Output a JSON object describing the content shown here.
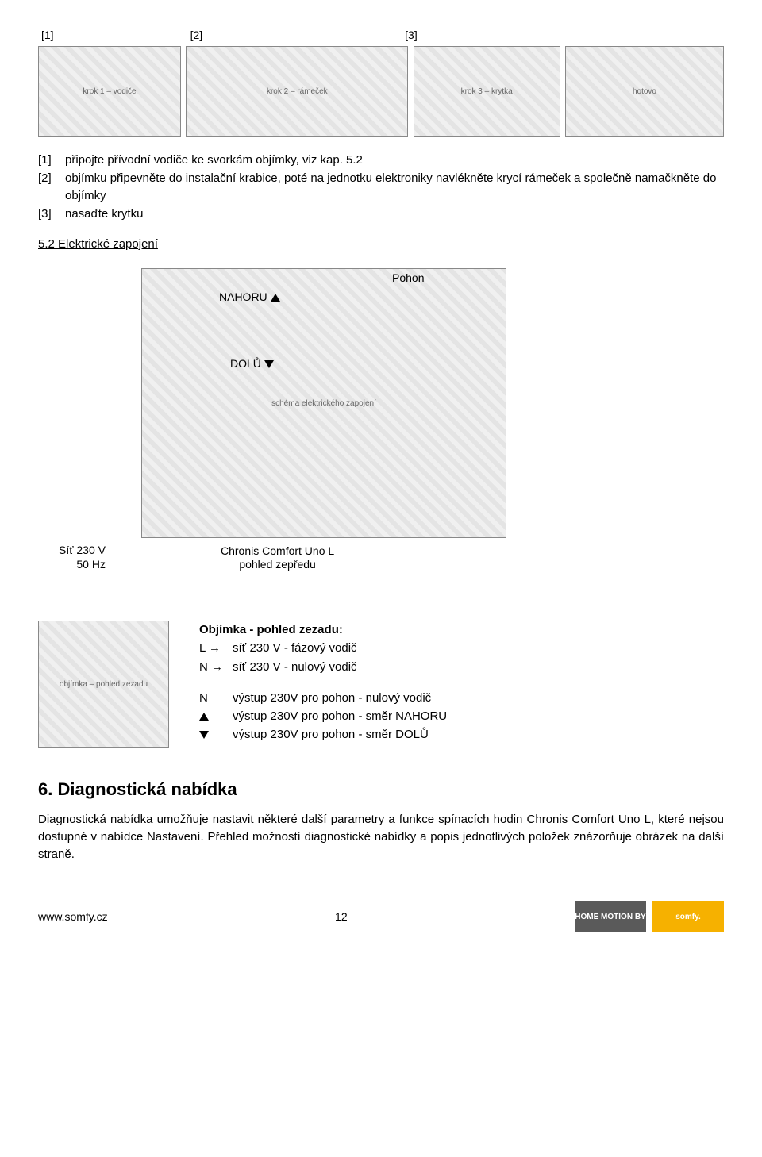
{
  "install_steps": {
    "s1": "[1]",
    "s2": "[2]",
    "s3": "[3]"
  },
  "install_img_alt": {
    "i1": "krok 1 – vodiče",
    "i2": "krok 2 – rámeček",
    "i3": "krok 3 – krytka",
    "i4": "hotovo"
  },
  "list": {
    "r1_n": "[1]",
    "r1_t": "připojte přívodní vodiče ke svorkám objímky, viz kap. 5.2",
    "r2_n": "[2]",
    "r2_t": "objímku připevněte do instalační krabice, poté na jednotku elektroniky navlékněte krycí rámeček a společně namačkněte do objímky",
    "r3_n": "[3]",
    "r3_t": "nasaďte krytku"
  },
  "sec52": "5.2    Elektrické zapojení",
  "wiring": {
    "nahoru": "NAHORU",
    "pohon": "Pohon",
    "dolu": "DOLŮ",
    "sit_l1": "Síť 230 V",
    "sit_l2": "50 Hz",
    "pohled_l1": "Chronis Comfort Uno L",
    "pohled_l2": "pohled zepředu",
    "diagram_alt": "schéma elektrického zapojení"
  },
  "objimka": {
    "header": "Objímka - pohled zezadu:",
    "l_sym": "L →",
    "l_txt": "síť 230 V - fázový vodič",
    "n_sym": "N →",
    "n_txt": "síť 230 V - nulový vodič",
    "n2_sym": "N",
    "n2_txt": "výstup 230V pro pohon - nulový vodič",
    "up_txt": "výstup 230V pro pohon - směr NAHORU",
    "dn_txt": "výstup 230V pro pohon - směr DOLŮ",
    "socket_alt": "objímka – pohled zezadu"
  },
  "sec6_title": "6.  Diagnostická nabídka",
  "sec6_body": "Diagnostická nabídka umožňuje nastavit některé další parametry a funkce spínacích hodin Chronis Comfort Uno L, které nejsou dostupné v nabídce Nastavení. Přehled možností diagnostické nabídky a popis jednotlivých položek znázorňuje obrázek na další straně.",
  "footer": {
    "url": "www.somfy.cz",
    "page": "12",
    "logo1": "HOME MOTION BY",
    "logo2": "somfy."
  },
  "colors": {
    "logo_grey": "#5a5a5a",
    "logo_yellow": "#f6b100"
  }
}
